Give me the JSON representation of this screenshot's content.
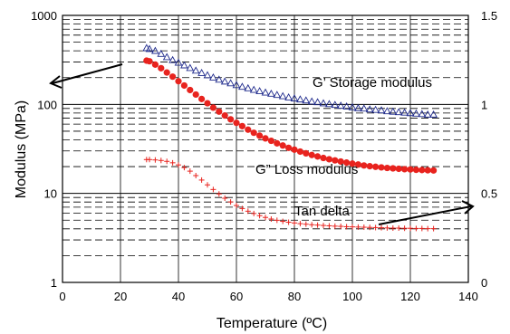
{
  "chart_data": {
    "type": "scatter",
    "xlabel": "Temperature (ºC)",
    "ylabel": "Modulus (MPa)",
    "xlim": [
      0,
      140
    ],
    "ylim_left": [
      1,
      1000
    ],
    "ylim_right": [
      0,
      1.5
    ],
    "y_scale_left": "log",
    "x_ticks": [
      "0",
      "20",
      "40",
      "60",
      "80",
      "100",
      "120",
      "140"
    ],
    "y_ticks_left": [
      "1",
      "10",
      "100",
      "1000"
    ],
    "y_ticks_right": [
      "0",
      "0.5",
      "1",
      "1.5"
    ],
    "grid": true,
    "annotations": {
      "storage": "G’ Storage modulus",
      "loss": "G” Loss modulus",
      "tan": "Tan delta"
    },
    "series": [
      {
        "name": "G' Storage modulus",
        "axis": "left",
        "marker": "triangle",
        "color": "#1f2a8c",
        "x": [
          29,
          30,
          32,
          34,
          36,
          38,
          40,
          42,
          44,
          46,
          48,
          50,
          52,
          54,
          56,
          58,
          60,
          62,
          64,
          66,
          68,
          70,
          72,
          74,
          76,
          78,
          80,
          82,
          84,
          86,
          88,
          90,
          92,
          94,
          96,
          98,
          100,
          102,
          104,
          106,
          108,
          110,
          112,
          114,
          116,
          118,
          120,
          122,
          124,
          126,
          128
        ],
        "y": [
          430,
          420,
          400,
          370,
          340,
          315,
          295,
          275,
          257,
          240,
          226,
          213,
          201,
          190,
          181,
          173,
          165,
          158,
          152,
          146,
          141,
          136,
          132,
          128,
          124,
          120,
          117,
          114,
          111,
          108,
          106,
          103,
          101,
          99,
          97,
          95,
          93,
          91,
          90,
          88,
          87,
          86,
          84,
          83,
          82,
          81,
          80,
          79,
          78,
          77,
          77
        ]
      },
      {
        "name": "G\" Loss modulus",
        "axis": "left",
        "marker": "circle",
        "color": "#e8231e",
        "x": [
          29,
          30,
          32,
          34,
          36,
          38,
          40,
          42,
          44,
          46,
          48,
          50,
          52,
          54,
          56,
          58,
          60,
          62,
          64,
          66,
          68,
          70,
          72,
          74,
          76,
          78,
          80,
          82,
          84,
          86,
          88,
          90,
          92,
          94,
          96,
          98,
          100,
          102,
          104,
          106,
          108,
          110,
          112,
          114,
          116,
          118,
          120,
          122,
          124,
          126,
          128
        ],
        "y": [
          310,
          305,
          280,
          255,
          228,
          205,
          182,
          163,
          145,
          129,
          115,
          103,
          92,
          83,
          75,
          68,
          62,
          57,
          52,
          48,
          44.5,
          41.5,
          39,
          36.5,
          34.5,
          32.5,
          31,
          29.5,
          28.2,
          27,
          26,
          25,
          24.2,
          23.5,
          22.8,
          22.2,
          21.6,
          21.1,
          20.6,
          20.2,
          19.9,
          19.6,
          19.3,
          19.1,
          18.9,
          18.7,
          18.6,
          18.4,
          18.3,
          18.2,
          18.1
        ]
      },
      {
        "name": "Tan delta",
        "axis": "right",
        "marker": "cross",
        "color": "#e8231e",
        "x": [
          29,
          30,
          32,
          34,
          36,
          38,
          40,
          42,
          44,
          46,
          48,
          50,
          52,
          54,
          56,
          58,
          60,
          62,
          64,
          66,
          68,
          70,
          72,
          74,
          76,
          78,
          80,
          82,
          84,
          86,
          88,
          90,
          92,
          94,
          96,
          98,
          100,
          102,
          104,
          106,
          108,
          110,
          112,
          114,
          116,
          118,
          120,
          122,
          124,
          126,
          128
        ],
        "y": [
          0.69,
          0.69,
          0.688,
          0.685,
          0.68,
          0.672,
          0.66,
          0.645,
          0.625,
          0.6,
          0.575,
          0.548,
          0.522,
          0.497,
          0.473,
          0.452,
          0.432,
          0.415,
          0.4,
          0.387,
          0.375,
          0.365,
          0.356,
          0.349,
          0.343,
          0.338,
          0.334,
          0.33,
          0.327,
          0.324,
          0.322,
          0.32,
          0.318,
          0.316,
          0.315,
          0.313,
          0.312,
          0.311,
          0.31,
          0.309,
          0.308,
          0.307,
          0.306,
          0.305,
          0.305,
          0.304,
          0.304,
          0.303,
          0.303,
          0.302,
          0.302
        ]
      }
    ]
  }
}
